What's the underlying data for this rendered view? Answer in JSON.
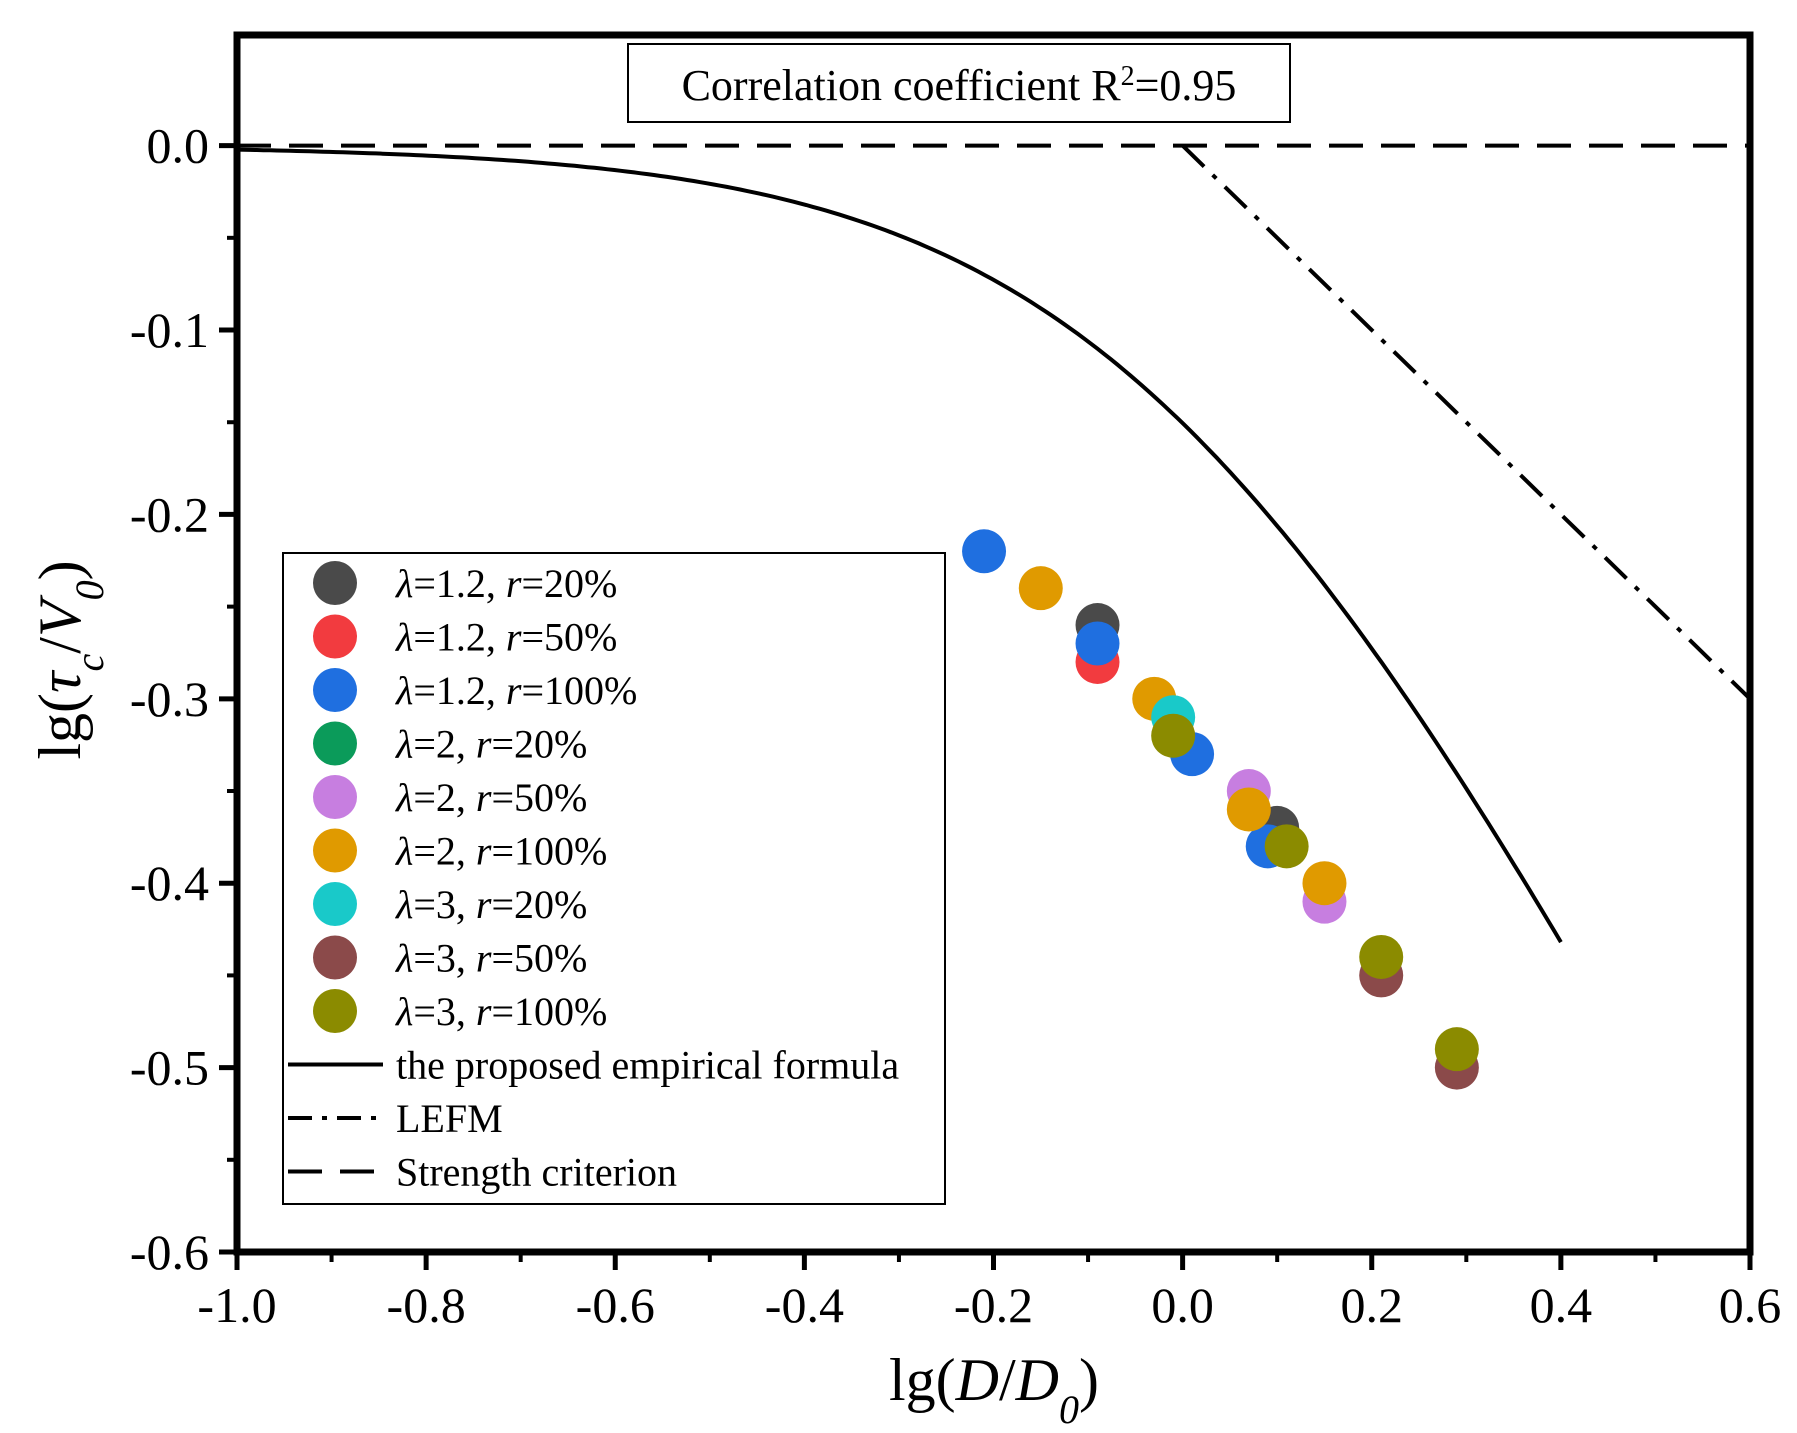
{
  "chart_data": {
    "type": "scatter",
    "xlabel": {
      "prefix": "lg(",
      "main": "D",
      "slash": "/",
      "base": "D",
      "sub": "0",
      "suffix": ")"
    },
    "ylabel": {
      "prefix": "lg(",
      "main": "τ",
      "main_sub": "c",
      "slash": "/",
      "base": "V",
      "sub": "0",
      "suffix": ")"
    },
    "xlim": [
      -1.0,
      0.6
    ],
    "ylim": [
      -0.6,
      0.06
    ],
    "x_ticks": [
      -1.0,
      -0.8,
      -0.6,
      -0.4,
      -0.2,
      0.0,
      0.2,
      0.4,
      0.6
    ],
    "x_tick_labels": [
      "-1.0",
      "-0.8",
      "-0.6",
      "-0.4",
      "-0.2",
      "0.0",
      "0.2",
      "0.4",
      "0.6"
    ],
    "y_ticks": [
      0.0,
      -0.1,
      -0.2,
      -0.3,
      -0.4,
      -0.5,
      -0.6
    ],
    "y_tick_labels": [
      "0.0",
      "-0.1",
      "-0.2",
      "-0.3",
      "-0.4",
      "-0.5",
      "-0.6"
    ],
    "annotation": {
      "text": "Correlation coefficient R",
      "sup": "2",
      "tail": "=0.95"
    },
    "series": [
      {
        "name": "λ=1.2, r=20%",
        "lambda": "1.2",
        "r": "20%",
        "color": "#4a4a4a",
        "points": [
          [
            -0.09,
            -0.26
          ],
          [
            0.1,
            -0.37
          ]
        ]
      },
      {
        "name": "λ=1.2, r=50%",
        "lambda": "1.2",
        "r": "50%",
        "color": "#f23b3f",
        "points": [
          [
            -0.09,
            -0.28
          ]
        ]
      },
      {
        "name": "λ=1.2, r=100%",
        "lambda": "1.2",
        "r": "100%",
        "color": "#1f6fe0",
        "points": [
          [
            -0.21,
            -0.22
          ],
          [
            -0.09,
            -0.27
          ],
          [
            0.01,
            -0.33
          ],
          [
            0.09,
            -0.38
          ]
        ]
      },
      {
        "name": "λ=2, r=20%",
        "lambda": "2",
        "r": "20%",
        "color": "#0b9b5a",
        "points": []
      },
      {
        "name": "λ=2, r=50%",
        "lambda": "2",
        "r": "50%",
        "color": "#c77ee0",
        "points": [
          [
            0.07,
            -0.35
          ],
          [
            0.15,
            -0.41
          ]
        ]
      },
      {
        "name": "λ=2, r=100%",
        "lambda": "2",
        "r": "100%",
        "color": "#e09a00",
        "points": [
          [
            -0.15,
            -0.24
          ],
          [
            -0.03,
            -0.3
          ],
          [
            0.07,
            -0.36
          ],
          [
            0.15,
            -0.4
          ]
        ]
      },
      {
        "name": "λ=3, r=20%",
        "lambda": "3",
        "r": "20%",
        "color": "#19c9c9",
        "points": [
          [
            -0.01,
            -0.31
          ]
        ]
      },
      {
        "name": "λ=3, r=50%",
        "lambda": "3",
        "r": "50%",
        "color": "#8b4a4a",
        "points": [
          [
            0.21,
            -0.45
          ],
          [
            0.29,
            -0.5
          ]
        ]
      },
      {
        "name": "λ=3, r=100%",
        "lambda": "3",
        "r": "100%",
        "color": "#8b8b00",
        "points": [
          [
            -0.01,
            -0.32
          ],
          [
            0.11,
            -0.38
          ],
          [
            0.21,
            -0.44
          ],
          [
            0.29,
            -0.49
          ]
        ]
      }
    ],
    "lines": [
      {
        "name": "the proposed empirical formula",
        "style": "solid",
        "formula": "y = -0.5*log10(1 + 10^(2x))",
        "x_range": [
          -1.0,
          0.4
        ]
      },
      {
        "name": "LEFM",
        "style": "dash-dot",
        "points": [
          [
            0.0,
            0.0
          ],
          [
            0.6,
            -0.3
          ]
        ]
      },
      {
        "name": "Strength criterion",
        "style": "dashed",
        "points": [
          [
            -1.0,
            0.0
          ],
          [
            0.6,
            0.0
          ]
        ]
      }
    ],
    "legend_position": "center-left"
  }
}
